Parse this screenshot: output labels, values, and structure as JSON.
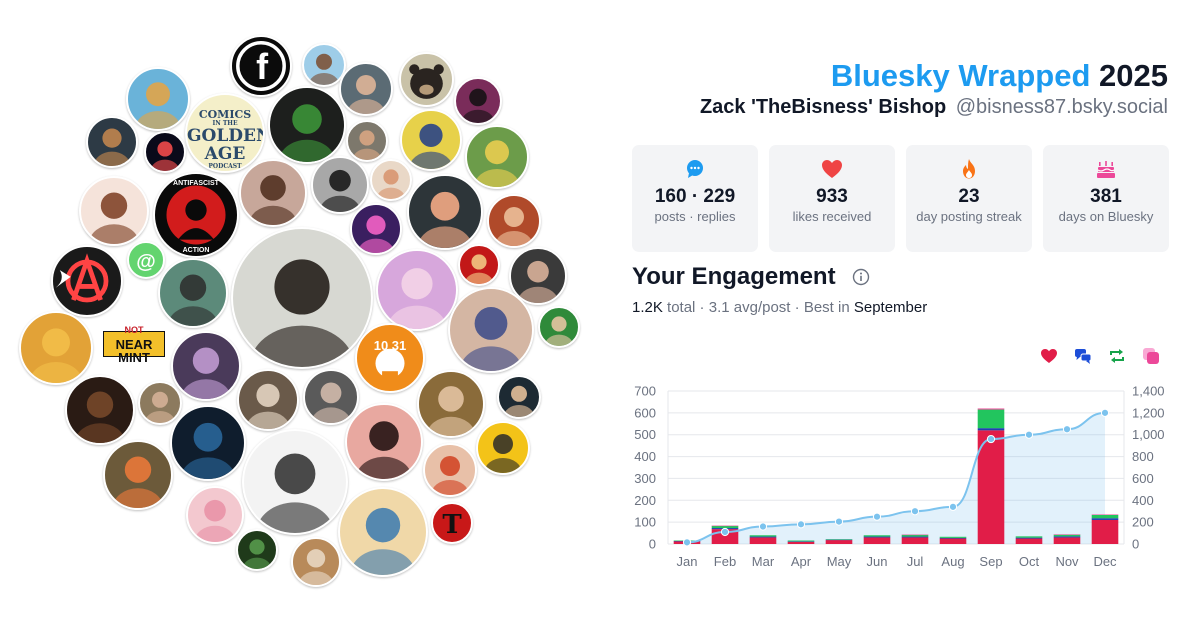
{
  "header": {
    "brand": "Bluesky Wrapped",
    "year": "2025",
    "display_name": "Zack 'TheBisness' Bishop",
    "handle": "@bisness87.bsky.social"
  },
  "stats": [
    {
      "icon": "speech-bubble-icon",
      "value": "160 · 229",
      "label": "posts · replies",
      "color": "#1d9bf0"
    },
    {
      "icon": "heart-icon",
      "value": "933",
      "label": "likes received",
      "color": "#ef4444"
    },
    {
      "icon": "flame-icon",
      "value": "23",
      "label": "day posting streak",
      "color": "#f97316"
    },
    {
      "icon": "cake-icon",
      "value": "381",
      "label": "days on Bluesky",
      "color": "#ec4899"
    }
  ],
  "engagement": {
    "title": "Your Engagement",
    "total": "1.2K",
    "total_word": "total",
    "avg": "3.1 avg/post",
    "best_prefix": "Best in",
    "best_month": "September"
  },
  "legend": [
    {
      "icon": "heart-icon",
      "color": "#e11d48"
    },
    {
      "icon": "replies-icon",
      "color": "#1d4ed8"
    },
    {
      "icon": "repost-icon",
      "color": "#16a34a"
    },
    {
      "icon": "quote-icon",
      "color": "#ec4899"
    }
  ],
  "avatar_texts": {
    "comics1": "COMICS",
    "comics2": "IN THE",
    "comics3": "GOLDEN",
    "comics4": "AGE",
    "comics5": "PODCAST",
    "antifa1": "ANTIFASCIST",
    "antifa2": "ACTION",
    "nearmint1": "NOT",
    "nearmint2": "NEAR MINT",
    "at": "@",
    "f": "f",
    "t": "T",
    "num1031": "10  31"
  },
  "chart_data": {
    "type": "bar",
    "categories": [
      "Jan",
      "Feb",
      "Mar",
      "Apr",
      "May",
      "Jun",
      "Jul",
      "Aug",
      "Sep",
      "Oct",
      "Nov",
      "Dec"
    ],
    "series": [
      {
        "name": "likes",
        "color": "#e11d48",
        "values": [
          12,
          68,
          30,
          10,
          18,
          30,
          30,
          25,
          520,
          25,
          30,
          110
        ]
      },
      {
        "name": "replies",
        "color": "#1e40af",
        "values": [
          2,
          5,
          4,
          2,
          2,
          4,
          4,
          3,
          10,
          4,
          5,
          8
        ]
      },
      {
        "name": "reposts",
        "color": "#22c55e",
        "values": [
          2,
          10,
          6,
          4,
          2,
          6,
          8,
          5,
          85,
          6,
          8,
          15
        ]
      },
      {
        "name": "quotes",
        "color": "#ec4899",
        "values": [
          0,
          1,
          0,
          0,
          0,
          0,
          1,
          0,
          5,
          0,
          1,
          2
        ]
      }
    ],
    "cumulative": [
      15,
      110,
      160,
      180,
      205,
      250,
      300,
      340,
      960,
      1000,
      1050,
      1200
    ],
    "y_left": {
      "min": 0,
      "max": 700,
      "ticks": [
        "0",
        "100",
        "200",
        "300",
        "400",
        "500",
        "600",
        "700"
      ]
    },
    "y_right": {
      "min": 0,
      "max": 1400,
      "ticks": [
        "0",
        "200",
        "400",
        "600",
        "800",
        "1,000",
        "1,200",
        "1,400"
      ]
    },
    "grid": true
  }
}
